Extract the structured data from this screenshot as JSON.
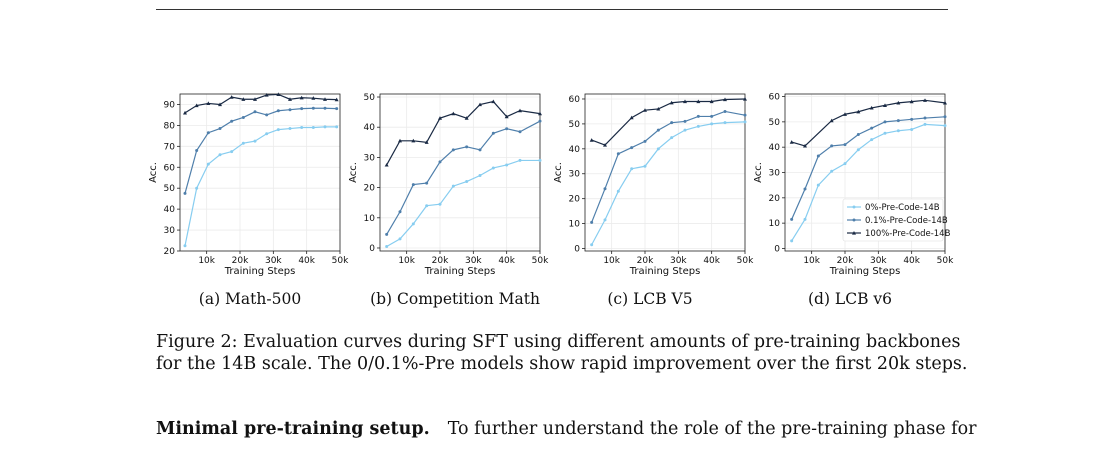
{
  "figure": {
    "caption_line1": "Figure 2: Evaluation curves during SFT using different amounts of pre-training backbones",
    "caption_line2": "for the 14B scale. The 0/0.1%-Pre models show rapid improvement over the first 20k steps."
  },
  "paragraph": {
    "heading": "Minimal pre-training setup.",
    "text": "To further understand the role of the pre-training phase for"
  },
  "colors": {
    "series_0pct": "#87cdf0",
    "series_01pct": "#4f7fab",
    "series_100pct": "#1a2a44",
    "grid": "#ebebeb",
    "frame": "#222222"
  },
  "chart_data": [
    {
      "type": "line",
      "subcaption": "(a) Math-500",
      "xlabel": "Training Steps",
      "ylabel": "Acc.",
      "xlim": [
        2000,
        50000
      ],
      "ylim": [
        20,
        95
      ],
      "xticks": [
        10000,
        20000,
        30000,
        40000,
        50000
      ],
      "xtick_labels": [
        "10k",
        "20k",
        "30k",
        "40k",
        "50k"
      ],
      "yticks": [
        20,
        30,
        40,
        50,
        60,
        70,
        80,
        90
      ],
      "yticks_labels": [
        "20",
        "30",
        "40",
        "50",
        "60",
        "70",
        "80",
        "90"
      ],
      "grid": true,
      "legend": false,
      "x": [
        3500,
        7000,
        10500,
        14000,
        17500,
        21000,
        24500,
        28000,
        31500,
        35000,
        38500,
        42000,
        45500,
        49000
      ],
      "series": [
        {
          "name": "0%-Pre-Code-14B",
          "values": [
            22.5,
            50,
            61.5,
            66,
            67.5,
            71.5,
            72.5,
            76,
            78,
            78.5,
            79,
            79,
            79.3,
            79.3
          ]
        },
        {
          "name": "0.1%-Pre-Code-14B",
          "values": [
            47.5,
            68,
            76.5,
            78.5,
            82,
            83.8,
            86.5,
            85,
            87,
            87.5,
            88,
            88.2,
            88.2,
            88
          ]
        },
        {
          "name": "100%-Pre-Code-14B",
          "values": [
            86,
            89.5,
            90.5,
            90,
            93.5,
            92.5,
            92.5,
            94.5,
            94.8,
            92.5,
            93.2,
            93,
            92.5,
            92.3
          ]
        }
      ]
    },
    {
      "type": "line",
      "subcaption": "(b) Competition Math",
      "xlabel": "Training Steps",
      "ylabel": "Acc.",
      "xlim": [
        2000,
        50000
      ],
      "ylim": [
        -1,
        51
      ],
      "xticks": [
        10000,
        20000,
        30000,
        40000,
        50000
      ],
      "xtick_labels": [
        "10k",
        "20k",
        "30k",
        "40k",
        "50k"
      ],
      "yticks": [
        0,
        10,
        20,
        30,
        40,
        50
      ],
      "yticks_labels": [
        "0",
        "10",
        "20",
        "30",
        "40",
        "50"
      ],
      "grid": true,
      "legend": false,
      "x": [
        4000,
        8000,
        12000,
        16000,
        20000,
        24000,
        28000,
        32000,
        36000,
        40000,
        44000,
        50000
      ],
      "series": [
        {
          "name": "0%-Pre-Code-14B",
          "values": [
            0.5,
            3,
            8,
            14,
            14.5,
            20.5,
            22,
            24,
            26.5,
            27.5,
            29,
            29
          ]
        },
        {
          "name": "0.1%-Pre-Code-14B",
          "values": [
            4.5,
            12,
            21,
            21.5,
            28.5,
            32.5,
            33.5,
            32.5,
            38,
            39.5,
            38.5,
            42
          ]
        },
        {
          "name": "100%-Pre-Code-14B",
          "values": [
            27.5,
            35.5,
            35.5,
            35,
            43,
            44.5,
            43,
            47.5,
            48.5,
            43.5,
            45.5,
            44.5
          ]
        }
      ]
    },
    {
      "type": "line",
      "subcaption": "(c) LCB V5",
      "xlabel": "Training Steps",
      "ylabel": "Acc.",
      "xlim": [
        2000,
        50000
      ],
      "ylim": [
        -1,
        62
      ],
      "xticks": [
        10000,
        20000,
        30000,
        40000,
        50000
      ],
      "xtick_labels": [
        "10k",
        "20k",
        "30k",
        "40k",
        "50k"
      ],
      "yticks": [
        0,
        10,
        20,
        30,
        40,
        50,
        60
      ],
      "yticks_labels": [
        "0",
        "10",
        "20",
        "30",
        "40",
        "50",
        "60"
      ],
      "grid": true,
      "legend": false,
      "x": [
        4000,
        8000,
        12000,
        16000,
        20000,
        24000,
        28000,
        32000,
        36000,
        40000,
        44000,
        50000
      ],
      "series": [
        {
          "name": "0%-Pre-Code-14B",
          "values": [
            1.5,
            11.5,
            23,
            32,
            33,
            40,
            44.5,
            47.5,
            49,
            50,
            50.5,
            50.8
          ]
        },
        {
          "name": "0.1%-Pre-Code-14B",
          "values": [
            10.5,
            24,
            38,
            40.5,
            43,
            47.5,
            50.5,
            51,
            53,
            53,
            55,
            53.5
          ]
        },
        {
          "name": "100%-Pre-Code-14B",
          "values": [
            43.5,
            41.5,
            null,
            52.5,
            55.5,
            56,
            58.5,
            59,
            59,
            59,
            59.8,
            60
          ]
        }
      ]
    },
    {
      "type": "line",
      "subcaption": "(d) LCB v6",
      "xlabel": "Training Steps",
      "ylabel": "Acc.",
      "xlim": [
        2000,
        50000
      ],
      "ylim": [
        -1,
        61
      ],
      "xticks": [
        10000,
        20000,
        30000,
        40000,
        50000
      ],
      "xtick_labels": [
        "10k",
        "20k",
        "30k",
        "40k",
        "50k"
      ],
      "yticks": [
        0,
        10,
        20,
        30,
        40,
        50,
        60
      ],
      "yticks_labels": [
        "0",
        "10",
        "20",
        "30",
        "40",
        "50",
        "60"
      ],
      "grid": true,
      "legend": true,
      "legend_position": "lower-right",
      "x": [
        4000,
        8000,
        12000,
        16000,
        20000,
        24000,
        28000,
        32000,
        36000,
        40000,
        44000,
        50000
      ],
      "series": [
        {
          "name": "0%-Pre-Code-14B",
          "values": [
            3,
            11.5,
            25,
            30.5,
            33.5,
            39,
            43,
            45.5,
            46.5,
            47,
            49,
            48.5
          ]
        },
        {
          "name": "0.1%-Pre-Code-14B",
          "values": [
            11.5,
            23.5,
            36.5,
            40.5,
            41,
            45,
            47.5,
            50,
            50.5,
            51,
            51.5,
            52
          ]
        },
        {
          "name": "100%-Pre-Code-14B",
          "values": [
            42,
            40.5,
            null,
            50.5,
            53,
            54,
            55.5,
            56.5,
            57.5,
            58,
            58.5,
            57.5
          ]
        }
      ]
    }
  ]
}
